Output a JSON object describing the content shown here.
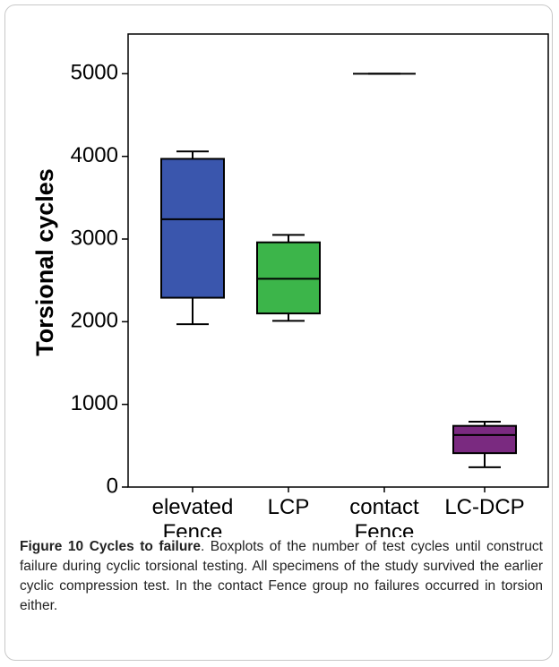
{
  "chart_data": {
    "type": "box",
    "ylabel": "Torsional cycles",
    "categories": [
      "elevated\nFence",
      "LCP",
      "contact\nFence",
      "LC-DCP"
    ],
    "boxes": [
      {
        "low": 1970,
        "q1": 2290,
        "median": 3240,
        "q3": 3970,
        "high": 4060,
        "color": "#3a56ad"
      },
      {
        "low": 2010,
        "q1": 2100,
        "median": 2520,
        "q3": 2960,
        "high": 3050,
        "color": "#3cb54a"
      },
      {
        "low": 5000,
        "q1": 5000,
        "median": 5000,
        "q3": 5000,
        "high": 5000,
        "color": "#3cb54a"
      },
      {
        "low": 240,
        "q1": 410,
        "median": 630,
        "q3": 740,
        "high": 790,
        "color": "#7a2a80"
      }
    ],
    "ylim": [
      0,
      5480
    ],
    "yticks": [
      0,
      1000,
      2000,
      3000,
      4000,
      5000
    ]
  },
  "caption": {
    "title": "Figure 10 Cycles to failure",
    "text": ". Boxplots of the number of test cycles until construct failure during cyclic torsional testing. All specimens of the study survived the earlier cyclic compression test. In the contact Fence group no failures occurred in torsion either."
  }
}
